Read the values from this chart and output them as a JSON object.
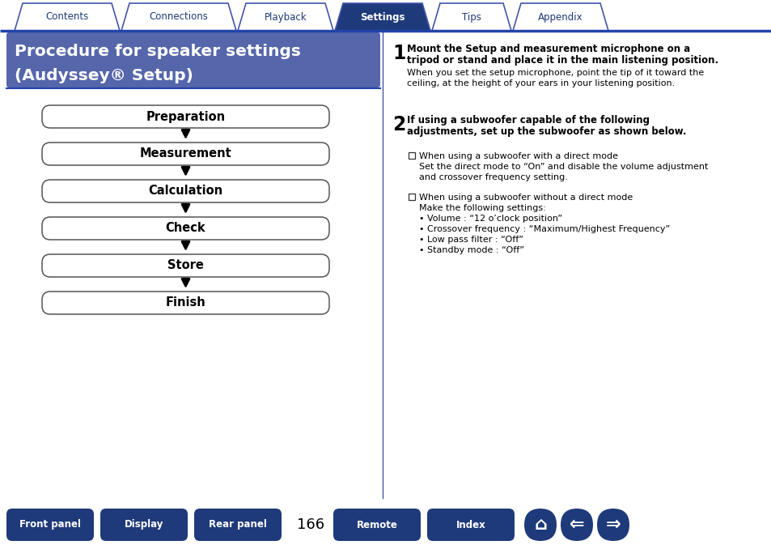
{
  "bg_color": "#ffffff",
  "tab_items": [
    "Contents",
    "Connections",
    "Playback",
    "Settings",
    "Tips",
    "Appendix"
  ],
  "tab_active_idx": 3,
  "tab_active_color": "#1e3a7a",
  "tab_inactive_color": "#ffffff",
  "tab_text_color_active": "#ffffff",
  "tab_text_color_inactive": "#1e3a7a",
  "tab_border_color": "#4455aa",
  "header_bg": "#5566aa",
  "header_text_line1": "Procedure for speaker settings",
  "header_text_line2": "(Audyssey® Setup)",
  "header_text_color": "#ffffff",
  "flow_boxes": [
    "Preparation",
    "Measurement",
    "Calculation",
    "Check",
    "Store",
    "Finish"
  ],
  "flow_box_color": "#ffffff",
  "flow_box_border": "#555555",
  "flow_text_color": "#000000",
  "section1_number": "1",
  "section1_bold_line1": "Mount the Setup and measurement microphone on a",
  "section1_bold_line2": "tripod or stand and place it in the main listening position.",
  "section1_normal": "When you set the setup microphone, point the tip of it toward the\nceiling, at the height of your ears in your listening position.",
  "section2_number": "2",
  "section2_bold_line1": "If using a subwoofer capable of the following",
  "section2_bold_line2": "adjustments, set up the subwoofer as shown below.",
  "section2_bullet1_head": "When using a subwoofer with a direct mode",
  "section2_bullet1_body1": "Set the direct mode to “On” and disable the volume adjustment",
  "section2_bullet1_body2": "and crossover frequency setting.",
  "section2_bullet2_head": "When using a subwoofer without a direct mode",
  "section2_bullet2_body": "Make the following settings:",
  "section2_bullet2_sub": [
    "• Volume : “12 o’clock position”",
    "• Crossover frequency : “Maximum/Highest Frequency”",
    "• Low pass filter : “Off”",
    "• Standby mode : “Off”"
  ],
  "bottom_buttons_left": [
    "Front panel",
    "Display",
    "Rear panel"
  ],
  "bottom_buttons_right": [
    "Remote",
    "Index"
  ],
  "bottom_page": "166",
  "bottom_btn_color": "#1e3a7a",
  "bottom_btn_text_color": "#ffffff",
  "divider_color": "#4455aa",
  "accent_blue": "#1e3a7a",
  "tab_line_color": "#2244aa",
  "hdr_line_color": "#2244aa"
}
